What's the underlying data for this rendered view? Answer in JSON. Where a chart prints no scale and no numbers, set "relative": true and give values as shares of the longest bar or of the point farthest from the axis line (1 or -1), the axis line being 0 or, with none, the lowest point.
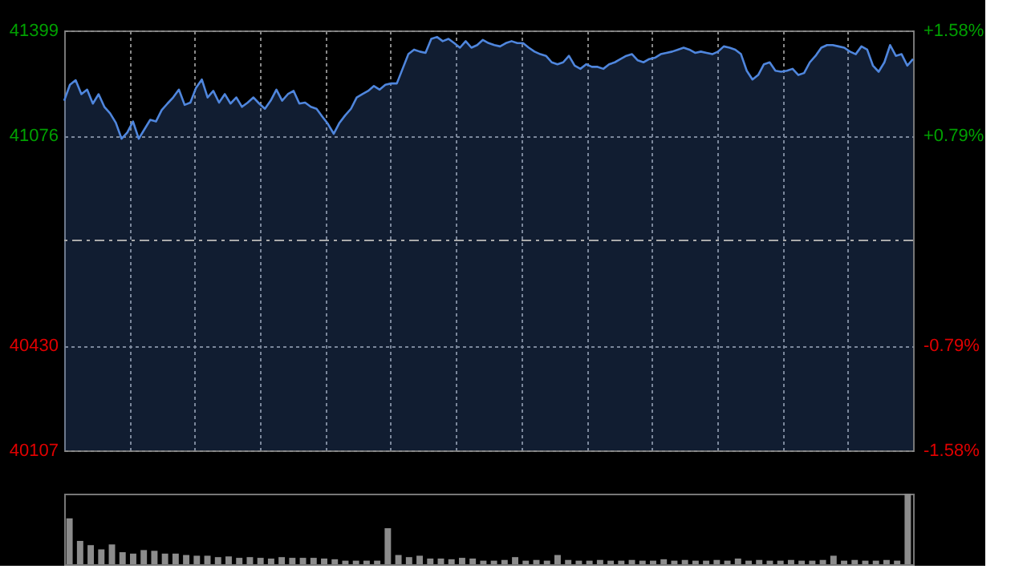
{
  "chart_data": [
    {
      "type": "area",
      "categories": [
        null,
        null,
        null,
        null,
        null,
        null,
        null,
        null,
        null,
        null,
        null,
        null,
        null,
        null,
        null,
        null,
        null,
        null,
        null,
        null,
        null,
        null,
        null,
        null,
        null,
        null,
        null,
        null,
        null,
        null,
        null,
        null,
        null,
        null,
        null,
        null,
        null,
        null,
        null,
        null,
        null,
        null,
        null,
        null,
        null,
        null,
        null,
        null,
        null,
        null,
        null,
        null,
        null,
        null,
        null,
        null,
        null,
        null,
        null,
        null,
        null,
        null,
        null,
        null,
        null,
        null,
        null,
        null,
        null,
        null,
        null,
        null,
        null,
        null,
        null,
        null,
        null,
        null,
        null,
        null,
        null,
        null,
        null,
        null,
        null,
        null,
        null,
        null,
        null,
        null,
        null,
        null,
        null,
        null,
        null,
        null,
        null,
        null,
        null,
        null,
        null,
        null,
        null,
        null,
        null,
        null,
        null,
        null,
        null,
        null,
        null,
        null,
        null,
        null,
        null,
        null,
        null,
        null,
        null,
        null,
        null,
        null,
        null,
        null,
        null,
        null,
        null,
        null,
        null,
        null,
        null,
        null,
        null,
        null,
        null,
        null,
        null,
        null,
        null,
        null,
        null,
        null,
        null,
        null,
        null,
        null,
        null,
        null,
        null
      ],
      "series": [
        {
          "color": "#4f86dd",
          "values": [
            41183,
            41232,
            41246,
            41203,
            41217,
            41174,
            41203,
            41164,
            41144,
            41115,
            41066,
            41085,
            41119,
            41066,
            41095,
            41124,
            41119,
            41154,
            41174,
            41193,
            41217,
            41170,
            41177,
            41223,
            41248,
            41193,
            41213,
            41177,
            41203,
            41174,
            41193,
            41164,
            41177,
            41193,
            41174,
            41158,
            41183,
            41217,
            41183,
            41203,
            41213,
            41174,
            41177,
            41164,
            41158,
            41134,
            41111,
            41081,
            41115,
            41138,
            41158,
            41193,
            41203,
            41213,
            41228,
            41217,
            41232,
            41236,
            41236,
            41281,
            41326,
            41340,
            41334,
            41330,
            41373,
            41379,
            41366,
            41373,
            41360,
            41346,
            41366,
            41346,
            41354,
            41370,
            41360,
            41354,
            41350,
            41360,
            41366,
            41360,
            41360,
            41346,
            41334,
            41326,
            41321,
            41301,
            41295,
            41301,
            41321,
            41291,
            41281,
            41295,
            41287,
            41287,
            41281,
            41295,
            41301,
            41311,
            41321,
            41326,
            41307,
            41301,
            41311,
            41315,
            41326,
            41330,
            41334,
            41340,
            41346,
            41340,
            41330,
            41334,
            41330,
            41326,
            41334,
            41350,
            41346,
            41340,
            41326,
            41275,
            41248,
            41262,
            41295,
            41301,
            41275,
            41272,
            41275,
            41281,
            41262,
            41268,
            41301,
            41321,
            41346,
            41354,
            41354,
            41350,
            41346,
            41334,
            41326,
            41350,
            41340,
            41291,
            41272,
            41301,
            41354,
            41321,
            41326,
            41291,
            41311
          ]
        }
      ],
      "ylim": [
        40107,
        41399
      ],
      "yticks": [
        41399,
        41076,
        40430,
        40107
      ],
      "y2lim": [
        -1.58,
        1.58
      ],
      "y2ticks": [
        {
          "value": 1.58,
          "label": "+1.58%"
        },
        {
          "value": 0.79,
          "label": "+0.79%"
        },
        {
          "value": -0.79,
          "label": "-0.79%"
        },
        {
          "value": -1.58,
          "label": "-1.58%"
        }
      ],
      "ref_lines": [
        {
          "axis": "y",
          "value": 40753,
          "color": "#aaaaaa",
          "line_style": "dashdot"
        }
      ],
      "grid": true,
      "line_style": "solid"
    },
    {
      "type": "bar",
      "relative": true,
      "color": "#8c8c8c",
      "categories": [
        null,
        null,
        null,
        null,
        null,
        null,
        null,
        null,
        null,
        null,
        null,
        null,
        null,
        null,
        null,
        null,
        null,
        null,
        null,
        null,
        null,
        null,
        null,
        null,
        null,
        null,
        null,
        null,
        null,
        null,
        null,
        null,
        null,
        null,
        null,
        null,
        null,
        null,
        null,
        null,
        null,
        null,
        null,
        null,
        null,
        null,
        null,
        null,
        null,
        null,
        null,
        null,
        null,
        null,
        null,
        null,
        null,
        null,
        null,
        null,
        null,
        null,
        null,
        null,
        null,
        null,
        null,
        null,
        null,
        null,
        null,
        null,
        null,
        null,
        null,
        null,
        null,
        null,
        null,
        null
      ],
      "values": [
        0.65,
        0.33,
        0.27,
        0.21,
        0.28,
        0.17,
        0.15,
        0.2,
        0.19,
        0.15,
        0.15,
        0.13,
        0.12,
        0.12,
        0.1,
        0.11,
        0.09,
        0.1,
        0.09,
        0.08,
        0.1,
        0.09,
        0.09,
        0.09,
        0.08,
        0.07,
        0.05,
        0.05,
        0.05,
        0.05,
        0.51,
        0.13,
        0.1,
        0.12,
        0.08,
        0.08,
        0.07,
        0.09,
        0.08,
        0.05,
        0.05,
        0.06,
        0.1,
        0.05,
        0.06,
        0.05,
        0.13,
        0.06,
        0.05,
        0.05,
        0.06,
        0.05,
        0.05,
        0.06,
        0.05,
        0.05,
        0.07,
        0.05,
        0.06,
        0.05,
        0.05,
        0.06,
        0.05,
        0.08,
        0.05,
        0.06,
        0.05,
        0.05,
        0.06,
        0.05,
        0.05,
        0.06,
        0.12,
        0.05,
        0.06,
        0.05,
        0.05,
        0.06,
        0.05,
        1
      ]
    }
  ]
}
